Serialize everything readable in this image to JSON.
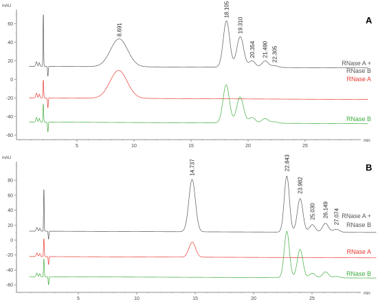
{
  "chart_data": [
    {
      "type": "line",
      "panel_letter": "A",
      "ylabel_unit": "mAU",
      "xlabel_unit": "min",
      "xlim": [
        0,
        31
      ],
      "ylim": [
        -65,
        75
      ],
      "x_ticks": [
        "5",
        "10",
        "15",
        "20",
        "25"
      ],
      "y_ticks": [
        "-60",
        "-40",
        "-20",
        "0",
        "20",
        "40",
        "60"
      ],
      "series": [
        {
          "label_line1": "RNase A +",
          "label_line2": "RNase B",
          "color": "#555555",
          "baseline": 14,
          "peaks": [
            [
              8.691,
              30,
              0.75
            ],
            [
              18.105,
              50,
              0.28
            ],
            [
              19.31,
              33,
              0.3
            ],
            [
              20.354,
              7,
              0.28
            ],
            [
              21.49,
              7,
              0.28
            ],
            [
              22.305,
              2,
              0.3
            ]
          ]
        },
        {
          "label_line1": "RNase A",
          "label_line2": "",
          "color": "#e8382f",
          "baseline": -20,
          "peaks": [
            [
              8.65,
              30,
              0.75
            ],
            [
              18.0,
              0,
              0.3
            ]
          ]
        },
        {
          "label_line1": "RNase B",
          "label_line2": "",
          "color": "#3cab3c",
          "baseline": -46,
          "peaks": [
            [
              18.08,
              41,
              0.28
            ],
            [
              19.3,
              28,
              0.3
            ],
            [
              20.35,
              6,
              0.28
            ],
            [
              21.48,
              5,
              0.28
            ],
            [
              22.3,
              1.5,
              0.3
            ]
          ]
        }
      ],
      "peak_labels": [
        {
          "text": "8.691",
          "x": 8.691,
          "y": 46
        },
        {
          "text": "18.105",
          "x": 18.105,
          "y": 66
        },
        {
          "text": "19.310",
          "x": 19.31,
          "y": 49
        },
        {
          "text": "20.354",
          "x": 20.354,
          "y": 23
        },
        {
          "text": "21.490",
          "x": 21.49,
          "y": 23
        },
        {
          "text": "22.305",
          "x": 22.305,
          "y": 18
        }
      ]
    },
    {
      "type": "line",
      "panel_letter": "B",
      "ylabel_unit": "mAU",
      "xlabel_unit": "min",
      "xlim": [
        0,
        31
      ],
      "ylim": [
        -70,
        105
      ],
      "x_ticks": [
        "5",
        "10",
        "15",
        "20",
        "25"
      ],
      "y_ticks": [
        "-60",
        "-40",
        "-20",
        "0",
        "20",
        "40",
        "60",
        "80"
      ],
      "series": [
        {
          "label_line1": "RNase A +",
          "label_line2": "RNase B",
          "color": "#555555",
          "baseline": 12,
          "peaks": [
            [
              14.737,
              70,
              0.28
            ],
            [
              22.843,
              75,
              0.22
            ],
            [
              23.982,
              45,
              0.24
            ],
            [
              25.03,
              10,
              0.25
            ],
            [
              26.149,
              12,
              0.25
            ],
            [
              27.074,
              4,
              0.28
            ]
          ]
        },
        {
          "label_line1": "RNase A",
          "label_line2": "",
          "color": "#e8382f",
          "baseline": -22,
          "peaks": [
            [
              14.75,
              20,
              0.28
            ]
          ]
        },
        {
          "label_line1": "RNase B",
          "label_line2": "",
          "color": "#3cab3c",
          "baseline": -49,
          "peaks": [
            [
              22.843,
              62,
              0.22
            ],
            [
              23.98,
              38,
              0.24
            ],
            [
              25.03,
              6,
              0.25
            ],
            [
              26.15,
              8,
              0.25
            ],
            [
              27.07,
              2,
              0.28
            ]
          ]
        }
      ],
      "peak_labels": [
        {
          "text": "14.737",
          "x": 14.737,
          "y": 86
        },
        {
          "text": "22.843",
          "x": 22.843,
          "y": 92
        },
        {
          "text": "23.982",
          "x": 23.982,
          "y": 62
        },
        {
          "text": "25.030",
          "x": 25.03,
          "y": 27
        },
        {
          "text": "26.149",
          "x": 26.149,
          "y": 29
        },
        {
          "text": "27.074",
          "x": 27.074,
          "y": 20
        }
      ]
    }
  ]
}
